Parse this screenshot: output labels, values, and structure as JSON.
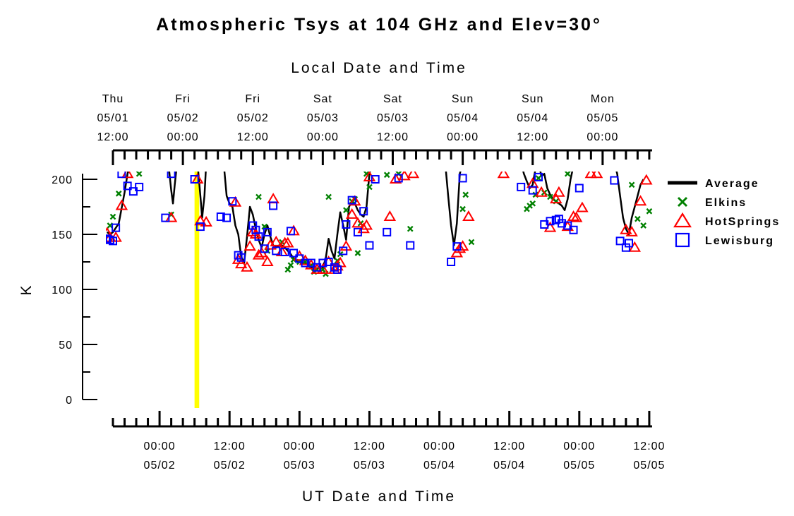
{
  "chart_data": {
    "type": "scatter",
    "title": "Atmospheric Tsys at 104 GHz and Elev=30°",
    "top_xlabel": "Local Date and Time",
    "xlabel": "UT Date and Time",
    "ylabel": "K",
    "ylim": [
      0,
      200
    ],
    "y_ticks": [
      0,
      50,
      100,
      150,
      200
    ],
    "x_range_hours": [
      0,
      92
    ],
    "local_ticks": [
      {
        "hour": 0,
        "lines": [
          "Thu",
          "05/01",
          "12:00"
        ]
      },
      {
        "hour": 12,
        "lines": [
          "Fri",
          "05/02",
          "00:00"
        ]
      },
      {
        "hour": 24,
        "lines": [
          "Fri",
          "05/02",
          "12:00"
        ]
      },
      {
        "hour": 36,
        "lines": [
          "Sat",
          "05/03",
          "00:00"
        ]
      },
      {
        "hour": 48,
        "lines": [
          "Sat",
          "05/03",
          "12:00"
        ]
      },
      {
        "hour": 60,
        "lines": [
          "Sun",
          "05/04",
          "00:00"
        ]
      },
      {
        "hour": 72,
        "lines": [
          "Sun",
          "05/04",
          "12:00"
        ]
      },
      {
        "hour": 84,
        "lines": [
          "Mon",
          "05/05",
          "00:00"
        ]
      }
    ],
    "ut_ticks": [
      {
        "hour": 8,
        "lines": [
          "00:00",
          "05/02"
        ]
      },
      {
        "hour": 20,
        "lines": [
          "12:00",
          "05/02"
        ]
      },
      {
        "hour": 32,
        "lines": [
          "00:00",
          "05/03"
        ]
      },
      {
        "hour": 44,
        "lines": [
          "12:00",
          "05/03"
        ]
      },
      {
        "hour": 56,
        "lines": [
          "00:00",
          "05/04"
        ]
      },
      {
        "hour": 68,
        "lines": [
          "12:00",
          "05/04"
        ]
      },
      {
        "hour": 80,
        "lines": [
          "00:00",
          "05/05"
        ]
      },
      {
        "hour": 92,
        "lines": [
          "12:00",
          "05/05"
        ]
      }
    ],
    "highlight_band": {
      "x_start": 14,
      "x_end": 14.8,
      "color": "#ffff00"
    },
    "legend_position": "right",
    "series": [
      {
        "name": "Average",
        "marker": "line",
        "color": "#000000",
        "points": [
          [
            -1,
            152
          ],
          [
            -0.5,
            150
          ],
          [
            0,
            152
          ],
          [
            1,
            160
          ],
          [
            2,
            188
          ],
          [
            2.5,
            205
          ],
          [
            3,
            215
          ],
          [
            9.5,
            215
          ],
          [
            10,
            190
          ],
          [
            10.3,
            178
          ],
          [
            10.6,
            195
          ],
          [
            11,
            215
          ],
          [
            14.5,
            215
          ],
          [
            15,
            185
          ],
          [
            15.3,
            165
          ],
          [
            15.7,
            185
          ],
          [
            16,
            215
          ],
          [
            19,
            215
          ],
          [
            19.5,
            185
          ],
          [
            20,
            178
          ],
          [
            20.5,
            175
          ],
          [
            21,
            158
          ],
          [
            21.5,
            150
          ],
          [
            22,
            130
          ],
          [
            22.5,
            124
          ],
          [
            23,
            148
          ],
          [
            23.5,
            175
          ],
          [
            24,
            168
          ],
          [
            24.5,
            155
          ],
          [
            25,
            145
          ],
          [
            25.5,
            138
          ],
          [
            26,
            150
          ],
          [
            26.5,
            158
          ],
          [
            27,
            148
          ],
          [
            27.5,
            140
          ],
          [
            28,
            138
          ],
          [
            28.5,
            140
          ],
          [
            29,
            140
          ],
          [
            29.5,
            138
          ],
          [
            30,
            135
          ],
          [
            30.5,
            132
          ],
          [
            31,
            128
          ],
          [
            31.5,
            126
          ],
          [
            32,
            125
          ],
          [
            32.5,
            124
          ],
          [
            33,
            124
          ],
          [
            33.5,
            122
          ],
          [
            34,
            120
          ],
          [
            34.5,
            120
          ],
          [
            35,
            119
          ],
          [
            35.5,
            120
          ],
          [
            36,
            120
          ],
          [
            36.5,
            128
          ],
          [
            37,
            146
          ],
          [
            37.5,
            135
          ],
          [
            38,
            128
          ],
          [
            38.5,
            150
          ],
          [
            39,
            170
          ],
          [
            39.5,
            158
          ],
          [
            40,
            145
          ],
          [
            40.5,
            175
          ],
          [
            41,
            180
          ],
          [
            41.5,
            178
          ],
          [
            42,
            172
          ],
          [
            42.5,
            168
          ],
          [
            43,
            166
          ],
          [
            43.5,
            175
          ],
          [
            44,
            205
          ],
          [
            44.5,
            215
          ],
          [
            57,
            215
          ],
          [
            57.5,
            185
          ],
          [
            58,
            158
          ],
          [
            58.5,
            140
          ],
          [
            59,
            160
          ],
          [
            59.5,
            205
          ],
          [
            60,
            215
          ],
          [
            70,
            215
          ],
          [
            70.5,
            205
          ],
          [
            71,
            198
          ],
          [
            71.5,
            192
          ],
          [
            72,
            195
          ],
          [
            72.5,
            210
          ],
          [
            73,
            215
          ],
          [
            73.5,
            203
          ],
          [
            74,
            205
          ],
          [
            74.5,
            192
          ],
          [
            75,
            186
          ],
          [
            75.5,
            182
          ],
          [
            76,
            180
          ],
          [
            76.5,
            178
          ],
          [
            77,
            176
          ],
          [
            77.5,
            172
          ],
          [
            78,
            182
          ],
          [
            78.5,
            200
          ],
          [
            79,
            212
          ],
          [
            79.5,
            215
          ],
          [
            86,
            215
          ],
          [
            86.5,
            205
          ],
          [
            87,
            185
          ],
          [
            87.5,
            165
          ],
          [
            88,
            155
          ],
          [
            88.5,
            150
          ],
          [
            89,
            165
          ],
          [
            89.5,
            175
          ],
          [
            90,
            185
          ],
          [
            90.5,
            195
          ],
          [
            91,
            200
          ]
        ]
      },
      {
        "name": "Elkins",
        "marker": "x",
        "color": "#008000",
        "points": [
          [
            -0.5,
            158
          ],
          [
            0,
            166
          ],
          [
            1,
            187
          ],
          [
            4.5,
            205
          ],
          [
            10,
            168
          ],
          [
            25,
            184
          ],
          [
            26,
            157
          ],
          [
            26.5,
            135
          ],
          [
            29,
            143
          ],
          [
            30,
            118
          ],
          [
            30.5,
            122
          ],
          [
            31,
            127
          ],
          [
            32,
            125
          ],
          [
            33,
            125
          ],
          [
            34,
            122
          ],
          [
            34.5,
            116
          ],
          [
            35,
            118
          ],
          [
            36,
            118
          ],
          [
            36.5,
            114
          ],
          [
            37,
            184
          ],
          [
            38.5,
            126
          ],
          [
            39,
            132
          ],
          [
            40,
            172
          ],
          [
            41,
            180
          ],
          [
            41.5,
            182
          ],
          [
            42,
            133
          ],
          [
            42.5,
            160
          ],
          [
            43.5,
            205
          ],
          [
            44,
            193
          ],
          [
            47,
            204
          ],
          [
            49,
            205
          ],
          [
            51,
            155
          ],
          [
            60,
            173
          ],
          [
            60.5,
            186
          ],
          [
            61.5,
            143
          ],
          [
            71,
            173
          ],
          [
            71.5,
            176
          ],
          [
            72,
            178
          ],
          [
            72.5,
            186
          ],
          [
            73,
            201
          ],
          [
            74,
            188
          ],
          [
            75,
            184
          ],
          [
            76,
            180
          ],
          [
            78,
            205
          ],
          [
            89,
            195
          ],
          [
            90,
            164
          ],
          [
            91,
            158
          ],
          [
            92,
            171
          ]
        ]
      },
      {
        "name": "HotSprings",
        "marker": "triangle",
        "color": "#ff0000",
        "points": [
          [
            -1,
            151
          ],
          [
            -0.5,
            147
          ],
          [
            0.5,
            147
          ],
          [
            1.5,
            176
          ],
          [
            2.5,
            205
          ],
          [
            10,
            165
          ],
          [
            14.5,
            200
          ],
          [
            15,
            162
          ],
          [
            16,
            161
          ],
          [
            21,
            179
          ],
          [
            21.5,
            127
          ],
          [
            22,
            123
          ],
          [
            23,
            120
          ],
          [
            23.5,
            139
          ],
          [
            24,
            152
          ],
          [
            24.5,
            150
          ],
          [
            25,
            131
          ],
          [
            25.5,
            133
          ],
          [
            26.5,
            125
          ],
          [
            27,
            140
          ],
          [
            27.5,
            182
          ],
          [
            28,
            143
          ],
          [
            29,
            134
          ],
          [
            29.5,
            142
          ],
          [
            30,
            142
          ],
          [
            31,
            153
          ],
          [
            32,
            130
          ],
          [
            33,
            126
          ],
          [
            34,
            122
          ],
          [
            35,
            118
          ],
          [
            36,
            118
          ],
          [
            37,
            125
          ],
          [
            38,
            118
          ],
          [
            38.5,
            121
          ],
          [
            39,
            124
          ],
          [
            40,
            139
          ],
          [
            41,
            168
          ],
          [
            41.5,
            180
          ],
          [
            42,
            160
          ],
          [
            43,
            155
          ],
          [
            43.5,
            158
          ],
          [
            44,
            202
          ],
          [
            47.5,
            166
          ],
          [
            48.5,
            200
          ],
          [
            50,
            203
          ],
          [
            51.5,
            205
          ],
          [
            59,
            133
          ],
          [
            59.5,
            137
          ],
          [
            60,
            139
          ],
          [
            61,
            166
          ],
          [
            67,
            205
          ],
          [
            72,
            196
          ],
          [
            73.5,
            188
          ],
          [
            75,
            156
          ],
          [
            76,
            182
          ],
          [
            76.5,
            188
          ],
          [
            78,
            157
          ],
          [
            79,
            166
          ],
          [
            79.5,
            165
          ],
          [
            80.5,
            174
          ],
          [
            82,
            205
          ],
          [
            83,
            205
          ],
          [
            88,
            154
          ],
          [
            89,
            152
          ],
          [
            89.5,
            138
          ],
          [
            90.5,
            180
          ],
          [
            91.5,
            199
          ]
        ]
      },
      {
        "name": "Lewisburg",
        "marker": "square",
        "color": "#0000ff",
        "points": [
          [
            -1,
            146
          ],
          [
            -0.5,
            145
          ],
          [
            0,
            144
          ],
          [
            0.5,
            156
          ],
          [
            1.5,
            205
          ],
          [
            2.5,
            194
          ],
          [
            3.5,
            189
          ],
          [
            4.5,
            193
          ],
          [
            9,
            165
          ],
          [
            10,
            205
          ],
          [
            14,
            200
          ],
          [
            15,
            157
          ],
          [
            18.5,
            166
          ],
          [
            19.5,
            165
          ],
          [
            20.5,
            180
          ],
          [
            21.5,
            131
          ],
          [
            22,
            129
          ],
          [
            24,
            158
          ],
          [
            24.5,
            154
          ],
          [
            25,
            148
          ],
          [
            26,
            137
          ],
          [
            26.5,
            152
          ],
          [
            27.5,
            176
          ],
          [
            28,
            135
          ],
          [
            29.5,
            134
          ],
          [
            30.5,
            153
          ],
          [
            31,
            133
          ],
          [
            32,
            128
          ],
          [
            33,
            124
          ],
          [
            34,
            124
          ],
          [
            35,
            120
          ],
          [
            36,
            124
          ],
          [
            37,
            125
          ],
          [
            38,
            120
          ],
          [
            38.5,
            118
          ],
          [
            39.5,
            135
          ],
          [
            40,
            159
          ],
          [
            41,
            181
          ],
          [
            42,
            152
          ],
          [
            43,
            171
          ],
          [
            44,
            140
          ],
          [
            45,
            200
          ],
          [
            47,
            152
          ],
          [
            49,
            201
          ],
          [
            51,
            140
          ],
          [
            58,
            125
          ],
          [
            59,
            139
          ],
          [
            60,
            201
          ],
          [
            70,
            193
          ],
          [
            72,
            190
          ],
          [
            73,
            202
          ],
          [
            74,
            159
          ],
          [
            75,
            162
          ],
          [
            76,
            163
          ],
          [
            76.5,
            164
          ],
          [
            77,
            160
          ],
          [
            78,
            158
          ],
          [
            79,
            154
          ],
          [
            80,
            192
          ],
          [
            86,
            199
          ],
          [
            87,
            144
          ],
          [
            88,
            138
          ],
          [
            88.5,
            142
          ]
        ]
      }
    ]
  }
}
